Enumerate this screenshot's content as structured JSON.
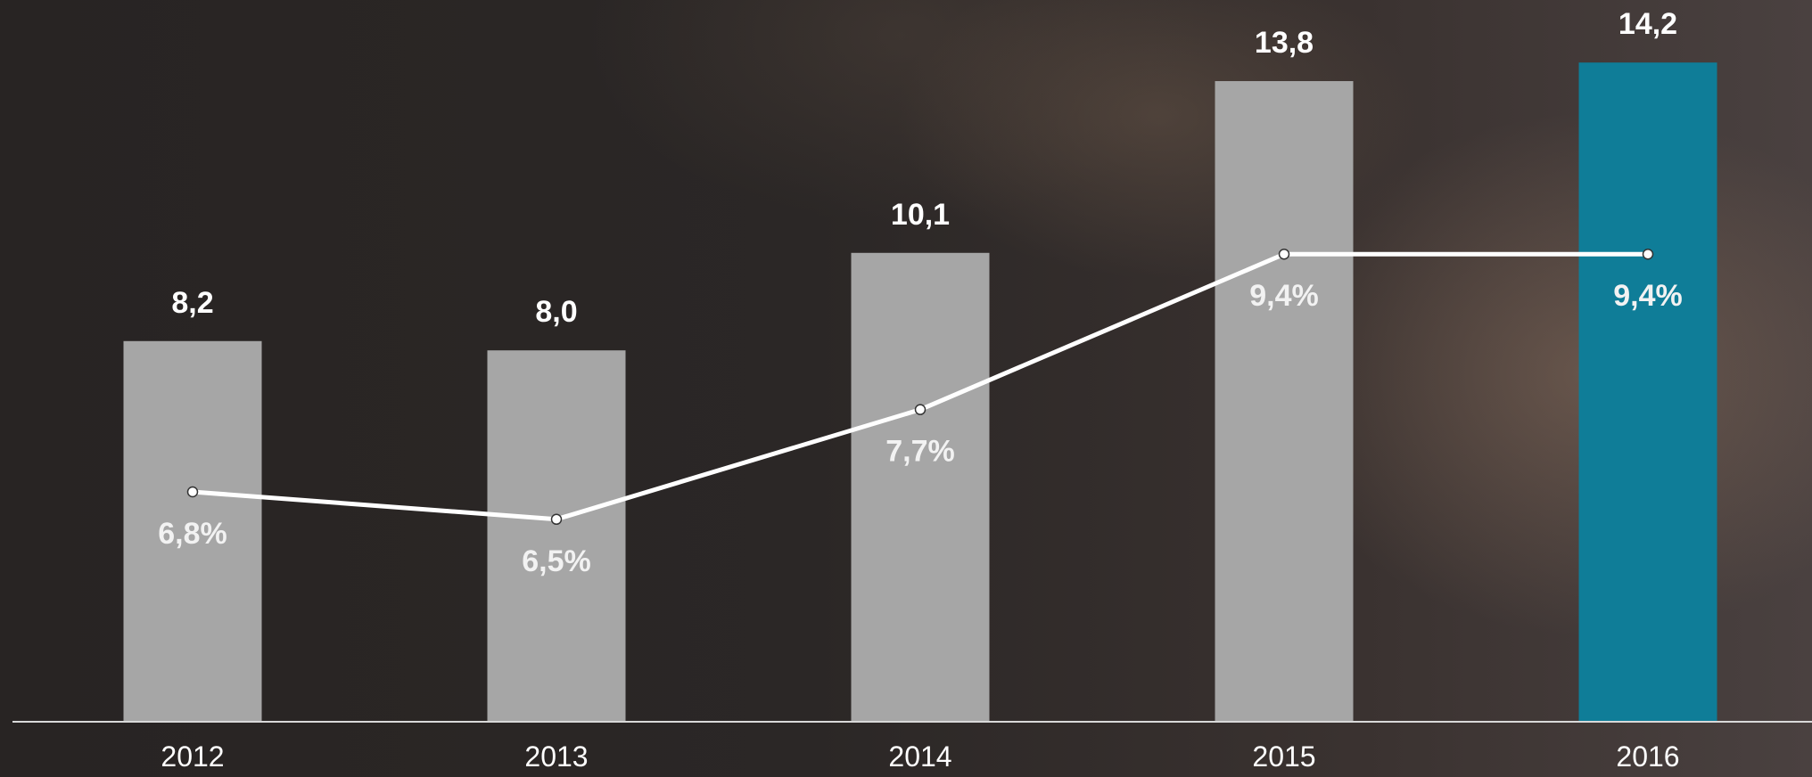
{
  "chart_data": {
    "type": "bar",
    "categories": [
      "2012",
      "2013",
      "2014",
      "2015",
      "2016"
    ],
    "series": [
      {
        "type": "bar",
        "values": [
          8.2,
          8.0,
          10.1,
          13.8,
          14.2
        ],
        "labels": [
          "8,2",
          "8,0",
          "10,1",
          "13,8",
          "14,2"
        ],
        "colors": [
          "#a6a6a6",
          "#a6a6a6",
          "#a6a6a6",
          "#a6a6a6",
          "#0f7d98"
        ]
      },
      {
        "type": "line",
        "values": [
          6.8,
          6.5,
          7.7,
          9.4,
          9.4
        ],
        "labels": [
          "6,8%",
          "6,5%",
          "7,7%",
          "9,4%",
          "9,4%"
        ],
        "color": "#ffffff"
      }
    ],
    "title": "",
    "xlabel": "",
    "ylabel": "",
    "grid": false,
    "legend": "none"
  }
}
